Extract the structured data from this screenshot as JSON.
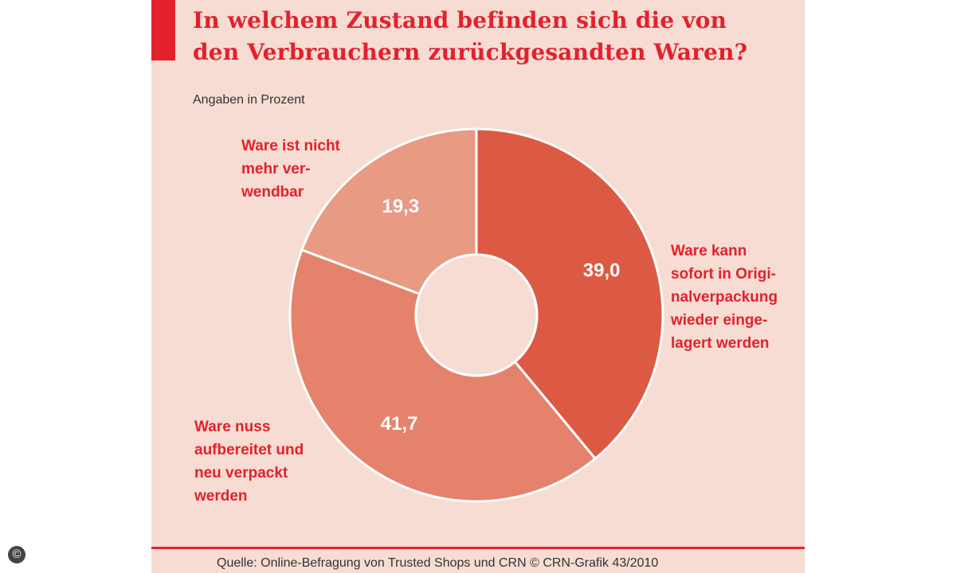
{
  "header": {
    "title": "In welchem Zustand befinden sich die von\nden Verbrauchern zurückgesandten Waren?",
    "subtitle": "Angaben in Prozent"
  },
  "colors": {
    "accent": "#e3212d",
    "background": "#f6dcd2",
    "slice_1": "#dc5a44",
    "slice_2": "#e5826b",
    "slice_3": "#e99a83"
  },
  "chart_data": {
    "type": "pie",
    "donut": true,
    "slices": [
      {
        "label": "Ware kann\nsofort in Origi-\nnalverpackung\nwieder einge-\nlagert werden",
        "value": 39.0,
        "value_label": "39,0",
        "color": "#dc5a44"
      },
      {
        "label": "Ware nuss\naufbereitet und\nneu verpackt\nwerden",
        "value": 41.7,
        "value_label": "41,7",
        "color": "#e5826b"
      },
      {
        "label": "Ware ist nicht\nmehr ver-\nwendbar",
        "value": 19.3,
        "value_label": "19,3",
        "color": "#e99a83"
      }
    ]
  },
  "footer": {
    "source": "Quelle: Online-Befragung von Trusted Shops und CRN © CRN-Grafik 43/2010",
    "badge": "©"
  }
}
